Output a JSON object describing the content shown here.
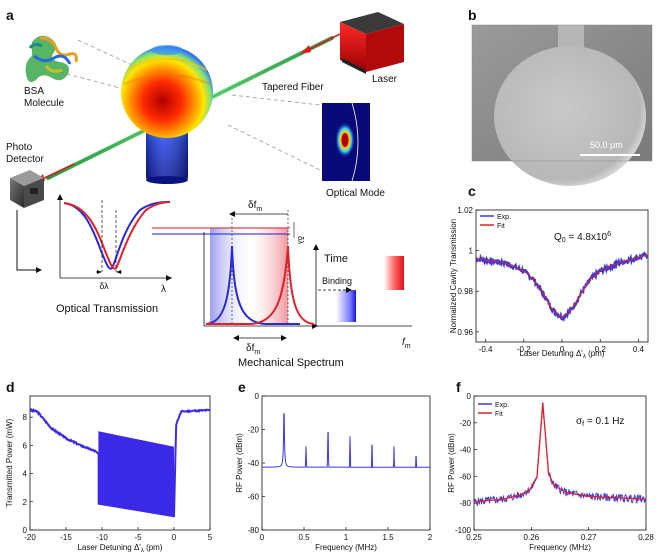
{
  "panels": {
    "a": {
      "letter": "a",
      "labels": {
        "bsa": "BSA\nMolecule",
        "tapered_fiber": "Tapered Fiber",
        "laser": "Laser",
        "photo_detector": "Photo\nDetector",
        "optical_mode": "Optical Mode",
        "optical_transmission": "Optical Transmission",
        "delta_lambda": "δλ",
        "lambda": "λ",
        "delta_fm_top": "δf",
        "delta_fm_top_sub": "m",
        "delta_lambda_rot": "δλ",
        "time": "Time",
        "binding": "Binding",
        "delta_fm_bottom": "δf",
        "delta_fm_bottom_sub": "m",
        "fm_axis": "f",
        "fm_axis_sub": "m",
        "mechanical_spectrum": "Mechanical Spectrum"
      },
      "colors": {
        "blue": "#2a2ad8",
        "red": "#e0202a",
        "fiber": "#3fbf5a"
      }
    },
    "b": {
      "letter": "b",
      "scalebar": "50.0 μm"
    },
    "c": {
      "letter": "c",
      "ylabel": "Normalized Cavity Transmission",
      "xlabel": "Laser Detuning  Δ'",
      "xlabel_sub": "λ",
      "xlabel_unit": " (pm)",
      "annotation": "Q",
      "annotation_sub": "0",
      "annotation_rest": " = 4.8x10",
      "annotation_sup": "6",
      "legend": [
        "Exp.",
        "Fit"
      ],
      "xticks": [
        "-0.4",
        "-0.2",
        "0",
        "0.2",
        "0.4"
      ],
      "yticks": [
        "1.02",
        "1",
        "0.98",
        "0.96"
      ]
    },
    "d": {
      "letter": "d",
      "ylabel": "Transmitted Power (mW)",
      "xlabel": "Laser Detuning  Δ'",
      "xlabel_sub": "λ",
      "xlabel_unit": " (pm)",
      "xticks": [
        "-20",
        "-15",
        "-10",
        "-5",
        "0",
        "5"
      ],
      "yticks": [
        "8",
        "6",
        "4",
        "2",
        "0"
      ]
    },
    "e": {
      "letter": "e",
      "ylabel": "RF Power (dBm)",
      "xlabel": "Frequency (MHz)",
      "xticks": [
        "0",
        "0.5",
        "1",
        "1.5",
        "2"
      ],
      "yticks": [
        "0",
        "-20",
        "-40",
        "-60",
        "-80"
      ]
    },
    "f": {
      "letter": "f",
      "ylabel": "RF Power (dBm)",
      "xlabel": "Frequency (MHz)",
      "annotation": "σ",
      "annotation_sub": "f",
      "annotation_rest": " = 0.1 Hz",
      "legend": [
        "Exp.",
        "Fit"
      ],
      "xticks": [
        "0.25",
        "0.26",
        "0.27",
        "0.28"
      ],
      "yticks": [
        "0",
        "-20",
        "-40",
        "-60",
        "-80",
        "-100"
      ]
    }
  },
  "chart_data": [
    {
      "panel": "c",
      "type": "line",
      "xlabel": "Laser Detuning Δ'λ (pm)",
      "ylabel": "Normalized Cavity Transmission",
      "xlim": [
        -0.45,
        0.45
      ],
      "ylim": [
        0.955,
        1.02
      ],
      "series": [
        {
          "name": "Exp.",
          "color": "#3a3adf",
          "x": [
            -0.45,
            -0.3,
            -0.2,
            -0.15,
            -0.1,
            -0.05,
            0,
            0.05,
            0.1,
            0.15,
            0.2,
            0.3,
            0.45
          ],
          "y": [
            0.996,
            0.994,
            0.99,
            0.986,
            0.979,
            0.971,
            0.967,
            0.971,
            0.979,
            0.986,
            0.99,
            0.994,
            0.998
          ]
        },
        {
          "name": "Fit",
          "color": "#e0202a",
          "x": [
            -0.45,
            -0.3,
            -0.2,
            -0.15,
            -0.1,
            -0.05,
            0,
            0.05,
            0.1,
            0.15,
            0.2,
            0.3,
            0.45
          ],
          "y": [
            0.996,
            0.994,
            0.99,
            0.986,
            0.979,
            0.971,
            0.967,
            0.971,
            0.979,
            0.986,
            0.99,
            0.994,
            0.998
          ]
        }
      ]
    },
    {
      "panel": "d",
      "type": "line",
      "xlabel": "Laser Detuning Δ'λ (pm)",
      "ylabel": "Transmitted Power (mW)",
      "xlim": [
        -20,
        5
      ],
      "ylim": [
        0,
        9.5
      ],
      "series": [
        {
          "name": "trace",
          "color": "#3a2ae8",
          "x": [
            -20,
            -19,
            -17,
            -15,
            -13,
            -11,
            -10.5
          ],
          "y": [
            8.5,
            8.4,
            7.2,
            6.5,
            6.0,
            5.6,
            5.4
          ]
        }
      ],
      "oscillation_band": {
        "x": [
          -10.5,
          0
        ],
        "upper": [
          7.0,
          5.9
        ],
        "lower": [
          1.8,
          0.9
        ]
      },
      "recovery": {
        "x": [
          0,
          0.3,
          1,
          5
        ],
        "y": [
          0.9,
          7.5,
          8.4,
          8.5
        ]
      }
    },
    {
      "panel": "e",
      "type": "line",
      "xlabel": "Frequency (MHz)",
      "ylabel": "RF Power (dBm)",
      "xlim": [
        0,
        2
      ],
      "ylim": [
        -80,
        0
      ],
      "baseline": {
        "x": [
          0,
          0.25,
          0.5,
          1,
          1.5,
          2
        ],
        "y": [
          -58,
          -42,
          -52,
          -58,
          -61,
          -65
        ]
      },
      "peaks": [
        {
          "x": 0.262,
          "y": -7
        },
        {
          "x": 0.524,
          "y": -30
        },
        {
          "x": 0.786,
          "y": -18
        },
        {
          "x": 1.048,
          "y": -24
        },
        {
          "x": 1.31,
          "y": -26
        },
        {
          "x": 1.572,
          "y": -30
        },
        {
          "x": 1.834,
          "y": -33
        }
      ]
    },
    {
      "panel": "f",
      "type": "line",
      "xlabel": "Frequency (MHz)",
      "ylabel": "RF Power (dBm)",
      "xlim": [
        0.25,
        0.28
      ],
      "ylim": [
        -100,
        0
      ],
      "series": [
        {
          "name": "Exp.",
          "color": "#3a3adf",
          "x": [
            0.25,
            0.255,
            0.258,
            0.26,
            0.261,
            0.262,
            0.263,
            0.264,
            0.266,
            0.27,
            0.275,
            0.28
          ],
          "y": [
            -79,
            -77,
            -74,
            -69,
            -60,
            -5,
            -58,
            -67,
            -72,
            -75,
            -76,
            -77
          ]
        },
        {
          "name": "Fit",
          "color": "#e0202a",
          "x": [
            0.25,
            0.255,
            0.258,
            0.26,
            0.261,
            0.262,
            0.263,
            0.264,
            0.266,
            0.27,
            0.275,
            0.28
          ],
          "y": [
            -79,
            -77,
            -74,
            -69,
            -60,
            -5,
            -58,
            -67,
            -72,
            -75,
            -76,
            -77
          ]
        }
      ]
    }
  ]
}
